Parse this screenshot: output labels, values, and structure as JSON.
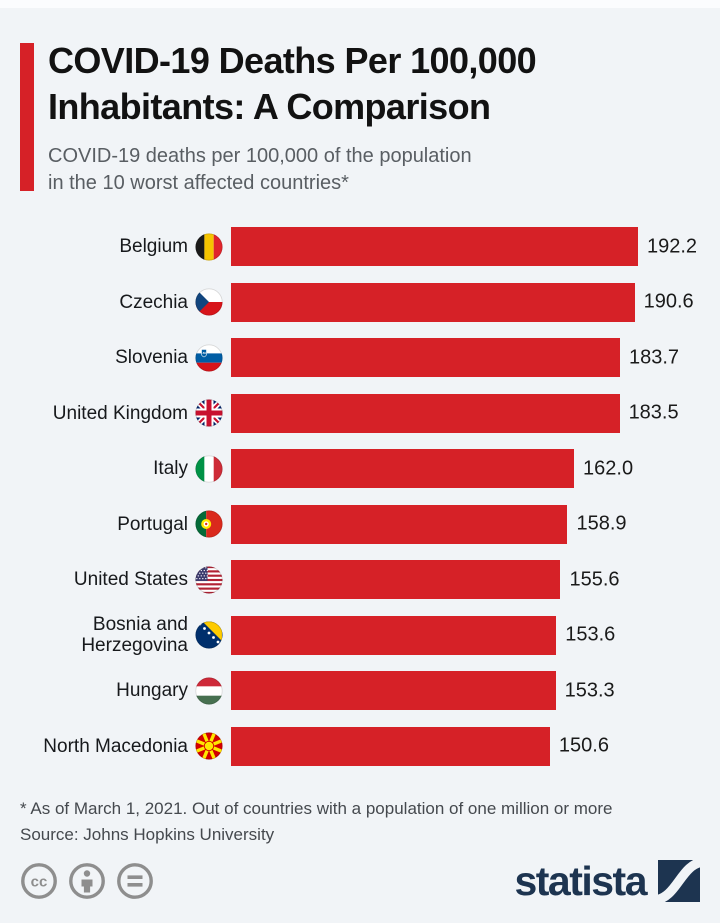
{
  "page": {
    "background": "#f1f4f7",
    "accent_color": "#d62127"
  },
  "header": {
    "title_line1": "COVID-19 Deaths Per 100,000",
    "title_line2": "Inhabitants: A Comparison",
    "subtitle_line1": "COVID-19 deaths per 100,000 of the population",
    "subtitle_line2": "in the 10 worst affected countries*"
  },
  "chart_data": {
    "type": "bar",
    "orientation": "horizontal",
    "title": "COVID-19 Deaths Per 100,000 Inhabitants: A Comparison",
    "subtitle": "COVID-19 deaths per 100,000 of the population in the 10 worst affected countries*",
    "categories": [
      "Belgium",
      "Czechia",
      "Slovenia",
      "United Kingdom",
      "Italy",
      "Portugal",
      "United States",
      "Bosnia and Herzegovina",
      "Hungary",
      "North Macedonia"
    ],
    "values": [
      192.2,
      190.6,
      183.7,
      183.5,
      162.0,
      158.9,
      155.6,
      153.6,
      153.3,
      150.6
    ],
    "value_labels": [
      "192.2",
      "190.6",
      "183.7",
      "183.5",
      "162.0",
      "158.9",
      "155.6",
      "153.6",
      "153.3",
      "150.6"
    ],
    "flag_icons": [
      "belgium-flag-icon",
      "czechia-flag-icon",
      "slovenia-flag-icon",
      "united-kingdom-flag-icon",
      "italy-flag-icon",
      "portugal-flag-icon",
      "united-states-flag-icon",
      "bosnia-herzegovina-flag-icon",
      "hungary-flag-icon",
      "north-macedonia-flag-icon"
    ],
    "bar_color": "#d62127",
    "xlim": [
      0,
      192.2
    ],
    "grid": false,
    "legend": false,
    "value_labels_position": "right-of-bar"
  },
  "footer": {
    "footnote": "* As of March 1, 2021. Out of countries with a population of one million or more",
    "source": "Source: Johns Hopkins University"
  },
  "branding": {
    "logo_text": "statista",
    "logo_color": "#1d3450",
    "license_icons": [
      "cc-icon",
      "attribution-icon",
      "equals-icon"
    ],
    "icon_color": "#8e8e8e"
  }
}
